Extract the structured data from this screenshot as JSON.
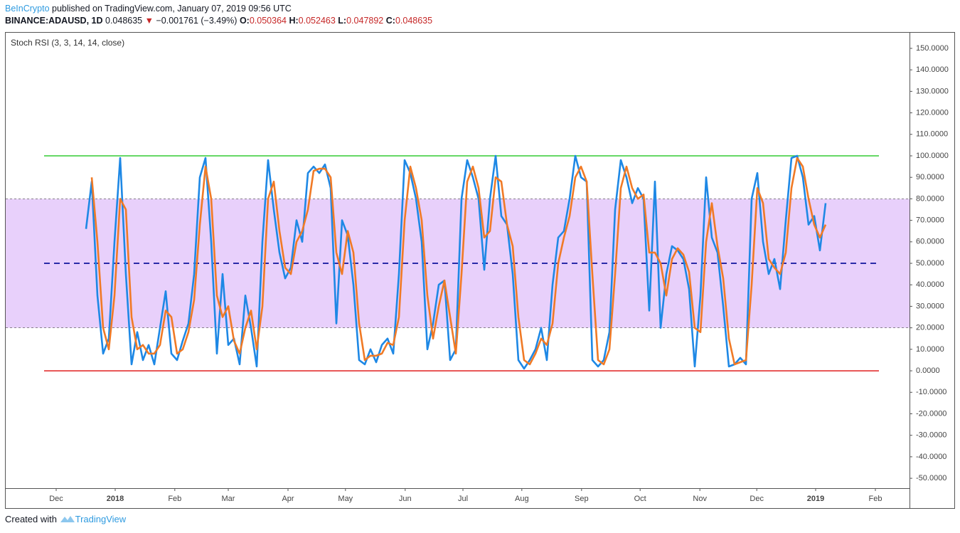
{
  "header": {
    "publisher": "BeInCrypto",
    "published": "published on TradingView.com, January 07, 2019 09:56 UTC",
    "symbol": "BINANCE:ADAUSD, 1D",
    "price": "0.048635",
    "arrow": "▼",
    "change": "−0.001761 (−3.49%)",
    "ohlc": [
      {
        "label": "O:",
        "value": "0.050364"
      },
      {
        "label": "H:",
        "value": "0.052463"
      },
      {
        "label": "L:",
        "value": "0.047892"
      },
      {
        "label": "C:",
        "value": "0.048635"
      }
    ]
  },
  "footer": {
    "text": "Created with",
    "brand": "TradingView"
  },
  "chart_data": {
    "type": "line",
    "title": "Stoch RSI (3, 3, 14, 14, close)",
    "xlim": [
      -14.125,
      144.75
    ],
    "xticks": [
      {
        "value": -5.25,
        "label": "Dec"
      },
      {
        "value": 5.125,
        "label": "2018"
      },
      {
        "value": 15.6,
        "label": "Feb"
      },
      {
        "value": 25,
        "label": "Mar"
      },
      {
        "value": 35.5,
        "label": "Apr"
      },
      {
        "value": 45.6,
        "label": "May"
      },
      {
        "value": 56.1,
        "label": "Jun"
      },
      {
        "value": 66.25,
        "label": "Jul"
      },
      {
        "value": 76.6,
        "label": "Aug"
      },
      {
        "value": 87.1,
        "label": "Sep"
      },
      {
        "value": 97.4,
        "label": "Oct"
      },
      {
        "value": 107.9,
        "label": "Nov"
      },
      {
        "value": 117.9,
        "label": "Dec"
      },
      {
        "value": 128.25,
        "label": "2019"
      },
      {
        "value": 138.75,
        "label": "Feb"
      }
    ],
    "ylim": [
      -54.6,
      157.6
    ],
    "yticks": [
      {
        "value": 150,
        "label": "150.0000"
      },
      {
        "value": 140,
        "label": "140.0000"
      },
      {
        "value": 130,
        "label": "130.0000"
      },
      {
        "value": 120,
        "label": "120.0000"
      },
      {
        "value": 110,
        "label": "110.0000"
      },
      {
        "value": 100,
        "label": "100.0000"
      },
      {
        "value": 90,
        "label": "90.0000"
      },
      {
        "value": 80,
        "label": "80.0000"
      },
      {
        "value": 70,
        "label": "70.0000"
      },
      {
        "value": 60,
        "label": "60.0000"
      },
      {
        "value": 50,
        "label": "50.0000"
      },
      {
        "value": 40,
        "label": "40.0000"
      },
      {
        "value": 30,
        "label": "30.0000"
      },
      {
        "value": 20,
        "label": "20.0000"
      },
      {
        "value": 10,
        "label": "10.0000"
      },
      {
        "value": 0,
        "label": "0.0000"
      },
      {
        "value": -10,
        "label": "-10.0000"
      },
      {
        "value": -20,
        "label": "-20.0000"
      },
      {
        "value": -30,
        "label": "-30.0000"
      },
      {
        "value": -40,
        "label": "-40.0000"
      },
      {
        "value": -50,
        "label": "-50.0000"
      }
    ],
    "band": {
      "upper": 80,
      "lower": 20,
      "color": "#e8d0fb"
    },
    "hlines": [
      {
        "value": 100,
        "color": "#33cc33",
        "style": "solid"
      },
      {
        "value": 50,
        "color": "#2a2aa8",
        "style": "dashed"
      },
      {
        "value": 0,
        "color": "#e01f1f",
        "style": "solid"
      }
    ],
    "series": [
      {
        "color": "#1e88e5",
        "values": [
          66,
          88,
          35,
          8,
          15,
          60,
          99,
          45,
          3,
          18,
          5,
          12,
          3,
          20,
          37,
          8,
          5,
          14,
          22,
          45,
          90,
          99,
          60,
          8,
          45,
          12,
          15,
          3,
          35,
          20,
          2,
          60,
          98,
          75,
          55,
          43,
          48,
          70,
          60,
          92,
          95,
          92,
          96,
          85,
          22,
          70,
          63,
          40,
          5,
          3,
          10,
          4,
          12,
          15,
          8,
          45,
          98,
          92,
          80,
          60,
          10,
          22,
          40,
          42,
          5,
          10,
          80,
          98,
          90,
          80,
          47,
          80,
          100,
          72,
          68,
          45,
          5,
          1,
          5,
          10,
          20,
          5,
          40,
          62,
          65,
          80,
          100,
          90,
          88,
          5,
          2,
          5,
          18,
          75,
          98,
          90,
          78,
          85,
          80,
          28,
          88,
          20,
          45,
          58,
          56,
          52,
          38,
          2,
          35,
          90,
          62,
          55,
          30,
          2,
          3,
          6,
          3,
          80,
          92,
          60,
          45,
          52,
          38,
          70,
          99,
          100,
          90,
          68,
          72,
          56,
          78
        ]
      },
      {
        "color": "#f07a26",
        "values": [
          null,
          90,
          60,
          20,
          10,
          35,
          80,
          75,
          25,
          10,
          12,
          8,
          8,
          12,
          28,
          25,
          8,
          10,
          18,
          33,
          68,
          95,
          80,
          35,
          25,
          30,
          14,
          8,
          20,
          28,
          10,
          30,
          80,
          88,
          65,
          48,
          45,
          60,
          65,
          75,
          93,
          94,
          94,
          90,
          55,
          45,
          65,
          55,
          22,
          5,
          7,
          7,
          8,
          13,
          12,
          25,
          70,
          95,
          85,
          70,
          35,
          15,
          30,
          42,
          25,
          8,
          45,
          88,
          95,
          85,
          62,
          65,
          90,
          88,
          68,
          58,
          25,
          5,
          3,
          8,
          15,
          12,
          22,
          50,
          62,
          72,
          90,
          95,
          88,
          45,
          5,
          3,
          10,
          45,
          85,
          95,
          85,
          80,
          82,
          55,
          55,
          50,
          35,
          52,
          57,
          54,
          46,
          20,
          18,
          60,
          78,
          58,
          43,
          15,
          3,
          4,
          5,
          40,
          85,
          78,
          52,
          48,
          45,
          55,
          85,
          99,
          95,
          80,
          68,
          62,
          68
        ]
      }
    ]
  }
}
